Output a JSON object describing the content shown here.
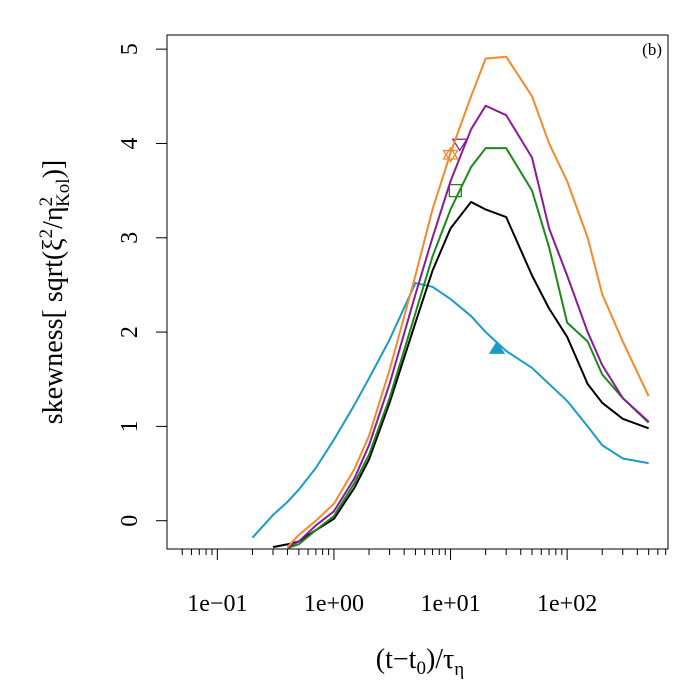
{
  "chart_data": {
    "type": "line",
    "annotation": "(b)",
    "xlabel": {
      "parts": [
        "(t−t",
        "0",
        ")/τ",
        "η"
      ]
    },
    "ylabel": {
      "parts": [
        "skewness[ sqrt(ξ",
        "2",
        "/η",
        "2",
        "Kol",
        ")]"
      ]
    },
    "log_x": true,
    "xlim": [
      0.037,
      733
    ],
    "ylim": [
      -0.3,
      5.15
    ],
    "xticks": [
      {
        "value": 0.1,
        "label": "1e−01"
      },
      {
        "value": 1,
        "label": "1e+00"
      },
      {
        "value": 10,
        "label": "1e+01"
      },
      {
        "value": 100,
        "label": "1e+02"
      }
    ],
    "xminorticks": [
      0.05,
      0.06,
      0.07,
      0.08,
      0.09,
      0.2,
      0.3,
      0.4,
      0.5,
      0.6,
      0.7,
      0.8,
      0.9,
      2,
      3,
      4,
      5,
      6,
      7,
      8,
      9,
      20,
      30,
      40,
      50,
      60,
      70,
      80,
      90,
      200,
      300,
      400,
      500,
      600,
      700
    ],
    "yticks": [
      0,
      1,
      2,
      3,
      4,
      5
    ],
    "x": [
      0.2,
      0.3,
      0.4,
      0.5,
      0.7,
      1,
      1.5,
      2,
      3,
      5,
      7,
      10,
      15,
      20,
      30,
      50,
      70,
      100,
      150,
      200,
      300,
      500
    ],
    "series": [
      {
        "color": "#1a9bc9",
        "values": [
          -0.18,
          0.06,
          0.2,
          0.33,
          0.56,
          0.86,
          1.23,
          1.51,
          1.92,
          2.52,
          2.48,
          2.35,
          2.17,
          2.0,
          1.8,
          1.62,
          1.45,
          1.27,
          1.0,
          0.8,
          0.66,
          0.61
        ],
        "marker": {
          "x": 25,
          "y": 1.82,
          "shape": "triangle-filled"
        }
      },
      {
        "color": "#000000",
        "values": [
          null,
          -0.28,
          -0.25,
          -0.22,
          -0.1,
          0.02,
          0.35,
          0.65,
          1.25,
          2.1,
          2.65,
          3.1,
          3.38,
          3.3,
          3.22,
          2.6,
          2.25,
          1.95,
          1.45,
          1.25,
          1.08,
          0.98
        ]
      },
      {
        "color": "#1a8a1a",
        "values": [
          null,
          null,
          -0.29,
          -0.25,
          -0.1,
          0.05,
          0.4,
          0.7,
          1.3,
          2.2,
          2.8,
          3.3,
          3.75,
          3.95,
          3.95,
          3.5,
          2.9,
          2.1,
          1.9,
          1.55,
          1.3,
          1.04
        ],
        "marker": {
          "x": 11,
          "y": 3.5,
          "shape": "square"
        }
      },
      {
        "color": "#8b1a9b",
        "values": [
          null,
          null,
          -0.28,
          -0.22,
          -0.05,
          0.1,
          0.45,
          0.8,
          1.45,
          2.4,
          3.0,
          3.6,
          4.15,
          4.4,
          4.3,
          3.85,
          3.1,
          2.6,
          2.0,
          1.65,
          1.3,
          1.05
        ],
        "marker": {
          "x": 12,
          "y": 4.0,
          "shape": "triangle-down"
        }
      },
      {
        "color": "#f58a2a",
        "values": [
          null,
          null,
          -0.28,
          -0.15,
          0.0,
          0.18,
          0.55,
          0.9,
          1.6,
          2.6,
          3.3,
          3.9,
          4.5,
          4.9,
          4.92,
          4.5,
          4.0,
          3.6,
          3.0,
          2.4,
          1.9,
          1.32
        ],
        "marker": {
          "x": 10,
          "y": 3.88,
          "shape": "star"
        }
      }
    ]
  }
}
